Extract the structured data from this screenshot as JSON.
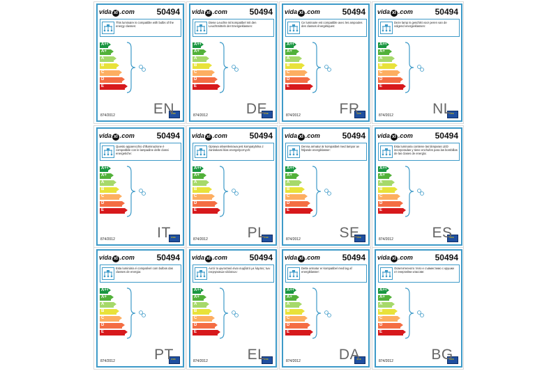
{
  "product_code": "50494",
  "logo": {
    "left": "vida",
    "mid": "xl",
    "right": ".com"
  },
  "regulation": "874/2012",
  "classes": [
    {
      "name": "A++",
      "color": "#1a9641"
    },
    {
      "name": "A+",
      "color": "#52b13a"
    },
    {
      "name": "A",
      "color": "#a6d96a"
    },
    {
      "name": "B",
      "color": "#e8e23a"
    },
    {
      "name": "C",
      "color": "#fdae61"
    },
    {
      "name": "D",
      "color": "#f46d43"
    },
    {
      "name": "E",
      "color": "#d7191c"
    }
  ],
  "labels": [
    {
      "lang": "EN",
      "text": "This luminaire is compatible with bulbs of the energy classes:"
    },
    {
      "lang": "DE",
      "text": "Diese Leuchte ist kompatibel mit den Leuchtmitteln der Energieklassen:"
    },
    {
      "lang": "FR",
      "text": "Ce luminaire est compatible avec les ampoules des classes énergétiques:"
    },
    {
      "lang": "NL",
      "text": "Deze lamp is geschikt voor peren van de volgend energieklassen:"
    },
    {
      "lang": "IT",
      "text": "Questo apparecchio d'illuminazione è compatibile con le lampadine delle classi energetiche:"
    },
    {
      "lang": "PL",
      "text": "Oprawa oświetleniowa jest kompatybilna z żarówkami klas energetycznych:"
    },
    {
      "lang": "SE",
      "text": "Denna armatur är kompatibel med lampor av följande energiklasser:"
    },
    {
      "lang": "ES",
      "text": "Esta luminaria contiene las lámparas LED incorporadas y tiene enchufes para las bombillas de las clases de energía:"
    },
    {
      "lang": "PT",
      "text": "Esta luminária é compatível com bulbos das classes de energia:"
    },
    {
      "lang": "EL",
      "text": "Αυτό το φωτιστικό είναι συμβατό με λάμπες των ενεργειακών κλάσεων:"
    },
    {
      "lang": "DA",
      "text": "Dette armatur er kompatibel med lag af energiklasser:"
    },
    {
      "lang": "BG",
      "text": "Осветителното тяло е съвместимо с крушки от енергийни класове:"
    }
  ]
}
